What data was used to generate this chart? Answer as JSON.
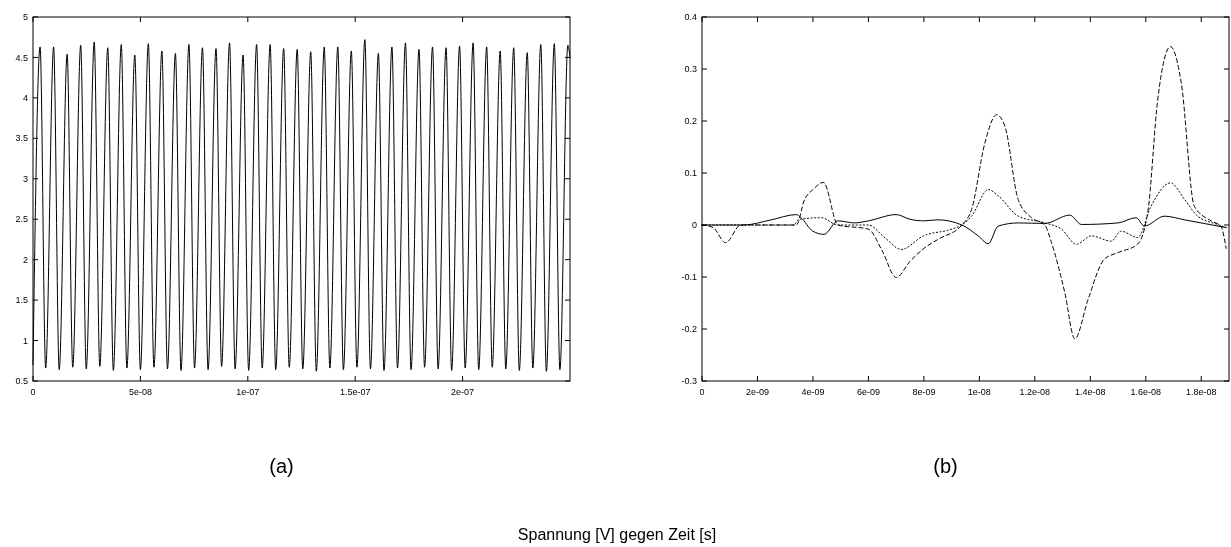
{
  "chart_data": [
    {
      "type": "line",
      "annotations": [
        "(a)",
        "Spannung [V] gegen Zeit [s]"
      ],
      "xlim": [
        0,
        2.5e-07
      ],
      "ylim": [
        0.5,
        5
      ],
      "xticks": [
        0,
        {
          "value": 5e-08,
          "label": "5e-08"
        },
        {
          "value": 1e-07,
          "label": "1e-07"
        },
        {
          "value": 1.5e-07,
          "label": "1.5e-07"
        },
        {
          "value": 2e-07,
          "label": "2e-07"
        }
      ],
      "yticks": [
        0.5,
        1,
        1.5,
        2,
        2.5,
        3,
        3.5,
        4,
        4.5,
        5
      ],
      "grid": false,
      "series": [
        {
          "color": "#000000",
          "line_style": "solid",
          "x": [
            0,
            3.3e-09,
            5.9e-09,
            9.6e-09,
            1.22e-08,
            1.59e-08,
            1.85e-08,
            2.22e-08,
            2.48e-08,
            2.85e-08,
            3.11e-08,
            3.48e-08,
            3.74e-08,
            4.11e-08,
            4.37e-08,
            4.74e-08,
            5e-08,
            5.37e-08,
            5.63e-08,
            6e-08,
            6.26e-08,
            6.63e-08,
            6.89e-08,
            7.26e-08,
            7.52e-08,
            7.89e-08,
            8.15e-08,
            8.52e-08,
            8.78e-08,
            9.15e-08,
            9.41e-08,
            9.78e-08,
            1.004e-07,
            1.041e-07,
            1.067e-07,
            1.104e-07,
            1.13e-07,
            1.167e-07,
            1.193e-07,
            1.23e-07,
            1.256e-07,
            1.293e-07,
            1.319e-07,
            1.356e-07,
            1.382e-07,
            1.419e-07,
            1.445e-07,
            1.482e-07,
            1.508e-07,
            1.545e-07,
            1.571e-07,
            1.608e-07,
            1.634e-07,
            1.671e-07,
            1.697e-07,
            1.734e-07,
            1.76e-07,
            1.797e-07,
            1.823e-07,
            1.86e-07,
            1.886e-07,
            1.923e-07,
            1.949e-07,
            1.986e-07,
            2.012e-07,
            2.049e-07,
            2.075e-07,
            2.112e-07,
            2.138e-07,
            2.175e-07,
            2.201e-07,
            2.238e-07,
            2.264e-07,
            2.301e-07,
            2.327e-07,
            2.364e-07,
            2.39e-07,
            2.427e-07,
            2.453e-07,
            2.49e-07,
            2.5e-07
          ],
          "values": [
            0.7,
            4.63,
            0.66,
            4.63,
            0.64,
            4.54,
            0.67,
            4.65,
            0.65,
            4.69,
            0.68,
            4.62,
            0.63,
            4.66,
            0.66,
            4.53,
            0.64,
            4.67,
            0.67,
            4.58,
            0.65,
            4.55,
            0.63,
            4.66,
            0.66,
            4.62,
            0.64,
            4.61,
            0.68,
            4.68,
            0.65,
            4.53,
            0.63,
            4.66,
            0.66,
            4.66,
            0.64,
            4.61,
            0.67,
            4.6,
            0.65,
            4.57,
            0.62,
            4.63,
            0.66,
            4.63,
            0.64,
            4.58,
            0.67,
            4.72,
            0.65,
            4.55,
            0.63,
            4.63,
            0.66,
            4.68,
            0.64,
            4.6,
            0.67,
            4.63,
            0.65,
            4.62,
            0.63,
            4.64,
            0.66,
            4.68,
            0.64,
            4.63,
            0.67,
            4.58,
            0.65,
            4.62,
            0.63,
            4.56,
            0.66,
            4.66,
            0.62,
            4.67,
            0.64,
            4.65,
            4.5
          ]
        }
      ]
    },
    {
      "type": "line",
      "annotations": [
        "(b)"
      ],
      "xlim": [
        0,
        1.9e-08
      ],
      "ylim": [
        -0.3,
        0.4
      ],
      "xticks": [
        0,
        {
          "value": 2e-09,
          "label": "2e-09"
        },
        {
          "value": 4e-09,
          "label": "4e-09"
        },
        {
          "value": 6e-09,
          "label": "6e-09"
        },
        {
          "value": 8e-09,
          "label": "8e-09"
        },
        {
          "value": 1e-08,
          "label": "1e-08"
        },
        {
          "value": 1.2e-08,
          "label": "1.2e-08"
        },
        {
          "value": 1.4e-08,
          "label": "1.4e-08"
        },
        {
          "value": 1.6e-08,
          "label": "1.6e-08"
        },
        {
          "value": 1.8e-08,
          "label": "1.8e-08"
        }
      ],
      "yticks": [
        -0.3,
        -0.2,
        -0.1,
        0,
        0.1,
        0.2,
        0.3,
        0.4
      ],
      "grid": false,
      "series": [
        {
          "color": "#000000",
          "line_style": "solid",
          "x": [
            0,
            1.5e-09,
            2.5e-09,
            3.4e-09,
            3.55e-09,
            4e-09,
            4.4e-09,
            4.9e-09,
            5.5e-09,
            6e-09,
            7e-09,
            7.5e-09,
            8e-09,
            8.5e-09,
            9.37e-09,
            9.96e-09,
            1.032e-08,
            1.068e-08,
            1.14e-08,
            1.236e-08,
            1.326e-08,
            1.368e-08,
            1.5e-08,
            1.565e-08,
            1.595e-08,
            1.667e-08,
            1.739e-08,
            1.89e-08
          ],
          "values": [
            0,
            0,
            0.01,
            0.02,
            0.015,
            -0.012,
            -0.018,
            0.008,
            0.004,
            0.008,
            0.02,
            0.011,
            0.008,
            0.01,
            0,
            -0.021,
            -0.036,
            -0.002,
            0.004,
            0.003,
            0.019,
            0.001,
            0.004,
            0.014,
            -0.002,
            0.017,
            0.01,
            -0.005
          ]
        },
        {
          "color": "#000000",
          "line_style": "dashed",
          "x": [
            0,
            4e-10,
            8.5e-10,
            1.4e-09,
            3.4e-09,
            3.7e-09,
            4e-09,
            4.38e-09,
            4.9e-09,
            6e-09,
            6.5e-09,
            7e-09,
            7.5e-09,
            8e-09,
            8.53e-09,
            9.37e-09,
            9.72e-09,
            1.02e-08,
            1.062e-08,
            1.092e-08,
            1.14e-08,
            1.188e-08,
            1.236e-08,
            1.26e-08,
            1.308e-08,
            1.344e-08,
            1.392e-08,
            1.45e-08,
            1.5e-08,
            1.57e-08,
            1.607e-08,
            1.643e-08,
            1.689e-08,
            1.728e-08,
            1.775e-08,
            1.835e-08,
            1.87e-08,
            1.89e-08
          ],
          "values": [
            0,
            -0.005,
            -0.034,
            0,
            0,
            0.049,
            0.068,
            0.082,
            0,
            -0.008,
            -0.05,
            -0.101,
            -0.07,
            -0.045,
            -0.027,
            0,
            0.03,
            0.158,
            0.212,
            0.19,
            0.049,
            0.014,
            0,
            -0.034,
            -0.13,
            -0.219,
            -0.143,
            -0.066,
            -0.053,
            -0.037,
            0.024,
            0.241,
            0.343,
            0.273,
            0.036,
            0.008,
            -0.002,
            -0.045
          ]
        },
        {
          "color": "#000000",
          "line_style": "dotted",
          "x": [
            0,
            1.5e-09,
            3.3e-09,
            3.5e-09,
            4.3e-09,
            4.9e-09,
            6e-09,
            6.6e-09,
            7.18e-09,
            7.98e-09,
            9e-09,
            9.37e-09,
            9.72e-09,
            1.032e-08,
            1.068e-08,
            1.14e-08,
            1.236e-08,
            1.296e-08,
            1.35e-08,
            1.404e-08,
            1.475e-08,
            1.511e-08,
            1.571e-08,
            1.619e-08,
            1.689e-08,
            1.74e-08,
            1.787e-08,
            1.859e-08,
            1.89e-08
          ],
          "values": [
            0,
            0,
            0,
            0.011,
            0.014,
            0,
            0,
            -0.025,
            -0.047,
            -0.021,
            -0.008,
            0,
            0.017,
            0.068,
            0.056,
            0.017,
            0.004,
            -0.008,
            -0.037,
            -0.021,
            -0.031,
            -0.012,
            -0.024,
            0.036,
            0.081,
            0.049,
            0.017,
            0.001,
            -0.005
          ]
        }
      ]
    }
  ]
}
